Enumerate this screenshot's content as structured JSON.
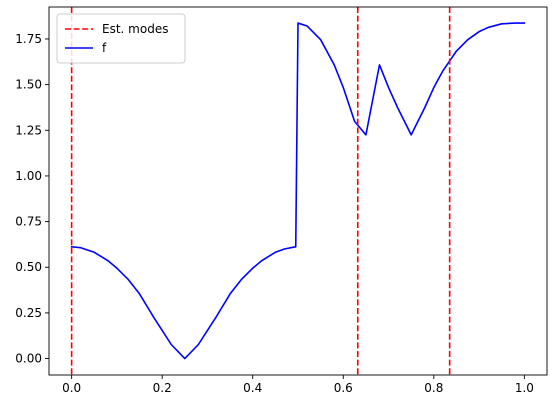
{
  "chart_data": {
    "type": "line",
    "title": "",
    "xlabel": "",
    "ylabel": "",
    "xlim": [
      -0.05,
      1.05
    ],
    "ylim": [
      -0.09,
      1.925
    ],
    "grid": false,
    "legend_position": "top-left",
    "x_ticks": [
      0.0,
      0.2,
      0.4,
      0.6,
      0.8,
      1.0
    ],
    "x_tick_labels": [
      "0.0",
      "0.2",
      "0.4",
      "0.6",
      "0.8",
      "1.0"
    ],
    "y_ticks": [
      0.0,
      0.25,
      0.5,
      0.75,
      1.0,
      1.25,
      1.5,
      1.75
    ],
    "y_tick_labels": [
      "0.00",
      "0.25",
      "0.50",
      "0.75",
      "1.00",
      "1.25",
      "1.50",
      "1.75"
    ],
    "series": [
      {
        "name": "f",
        "color": "#0000ff",
        "style": "solid",
        "x": [
          0.0,
          0.02,
          0.05,
          0.08,
          0.1,
          0.125,
          0.15,
          0.18,
          0.2,
          0.22,
          0.25,
          0.28,
          0.3,
          0.32,
          0.35,
          0.375,
          0.4,
          0.42,
          0.45,
          0.47,
          0.49,
          0.495,
          0.5,
          0.52,
          0.55,
          0.58,
          0.6,
          0.625,
          0.65,
          0.68,
          0.7,
          0.72,
          0.75,
          0.78,
          0.8,
          0.82,
          0.85,
          0.875,
          0.9,
          0.92,
          0.95,
          0.98,
          1.0
        ],
        "y": [
          0.612,
          0.607,
          0.582,
          0.536,
          0.495,
          0.433,
          0.354,
          0.231,
          0.154,
          0.077,
          0.0,
          0.077,
          0.154,
          0.231,
          0.354,
          0.433,
          0.495,
          0.536,
          0.582,
          0.6,
          0.61,
          0.612,
          1.837,
          1.821,
          1.746,
          1.608,
          1.484,
          1.299,
          1.225,
          1.608,
          1.484,
          1.374,
          1.225,
          1.374,
          1.484,
          1.575,
          1.684,
          1.746,
          1.79,
          1.813,
          1.833,
          1.837,
          1.837
        ]
      }
    ],
    "vlines": [
      {
        "name": "Est. modes",
        "color": "#ff0000",
        "style": "dashed",
        "x": [
          0.0,
          0.632,
          0.835
        ]
      }
    ],
    "legend": [
      {
        "label": "Est. modes",
        "color": "#ff0000",
        "style": "dashed"
      },
      {
        "label": "f",
        "color": "#0000ff",
        "style": "solid"
      }
    ]
  }
}
